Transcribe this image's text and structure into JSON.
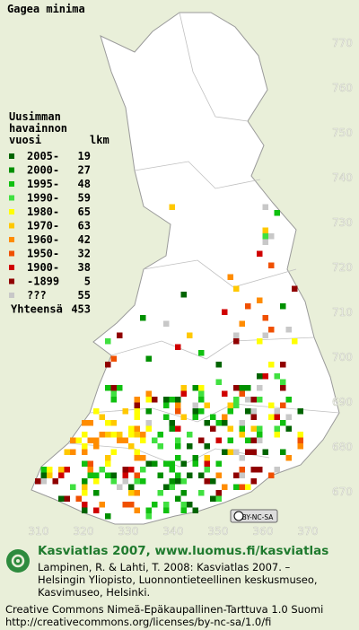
{
  "title": "Gagea minima",
  "legend": {
    "header": [
      "Uusimman",
      "havainnon",
      "vuosi"
    ],
    "count_header": "lkm",
    "rows": [
      {
        "label": "2005-",
        "count": 19,
        "color": "#006400"
      },
      {
        "label": "2000-",
        "count": 27,
        "color": "#009000"
      },
      {
        "label": "1995-",
        "count": 48,
        "color": "#10c010"
      },
      {
        "label": "1990-",
        "count": 59,
        "color": "#40e040"
      },
      {
        "label": "1980-",
        "count": 65,
        "color": "#ffff00"
      },
      {
        "label": "1970-",
        "count": 63,
        "color": "#ffc800"
      },
      {
        "label": "1960-",
        "count": 42,
        "color": "#ff8c00"
      },
      {
        "label": "1950-",
        "count": 32,
        "color": "#f05000"
      },
      {
        "label": "1900-",
        "count": 38,
        "color": "#d00000"
      },
      {
        "label": "-1899",
        "count": 5,
        "color": "#900000"
      },
      {
        "label": "???",
        "count": 55,
        "color": "#c8c8c8"
      }
    ],
    "total": {
      "label": "Yhteensä",
      "count": 453
    }
  },
  "grid": {
    "northing": [
      770,
      760,
      750,
      740,
      730,
      720,
      710,
      700,
      690,
      680,
      670
    ],
    "easting": [
      310,
      320,
      330,
      340,
      350,
      360,
      370
    ]
  },
  "badge": "BY-NC-SA",
  "footer": {
    "heading": "Kasviatlas 2007, www.luomus.fi/kasviatlas",
    "citation": [
      "Lampinen, R. & Lahti, T. 2008: Kasviatlas 2007. –",
      "Helsingin Yliopisto, Luonnontieteellinen keskusmuseo,",
      "Kasvimuseo, Helsinki."
    ],
    "license": [
      "Creative Commons Nimeä-Epäkaupallinen-Tarttuva 1.0 Suomi",
      "http://creativecommons.org/licenses/by-nc-sa/1.0/fi"
    ]
  }
}
